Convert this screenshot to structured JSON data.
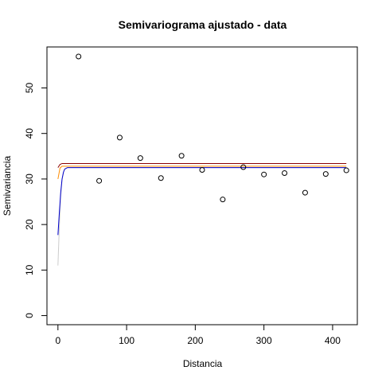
{
  "chart_data": {
    "type": "scatter",
    "title": "Semivariograma ajustado - data",
    "xlabel": "Distancia",
    "ylabel": "Semivariancia",
    "xlim": [
      -16,
      436
    ],
    "ylim": [
      -2,
      59
    ],
    "x_ticks": [
      0,
      100,
      200,
      300,
      400
    ],
    "y_ticks": [
      0,
      10,
      20,
      30,
      40,
      50
    ],
    "grid": false,
    "points": [
      {
        "x": 30,
        "y": 56.9
      },
      {
        "x": 60,
        "y": 29.6
      },
      {
        "x": 90,
        "y": 39.1
      },
      {
        "x": 120,
        "y": 34.6
      },
      {
        "x": 150,
        "y": 30.2
      },
      {
        "x": 180,
        "y": 35.1
      },
      {
        "x": 210,
        "y": 32.0
      },
      {
        "x": 240,
        "y": 25.5
      },
      {
        "x": 270,
        "y": 32.6
      },
      {
        "x": 300,
        "y": 31.0
      },
      {
        "x": 330,
        "y": 31.3
      },
      {
        "x": 360,
        "y": 27.0
      },
      {
        "x": 390,
        "y": 31.1
      },
      {
        "x": 420,
        "y": 31.9
      }
    ],
    "series": [
      {
        "color": "#cccccc",
        "values": [
          [
            0,
            11.0
          ],
          [
            2,
            19.5
          ],
          [
            4,
            26.0
          ],
          [
            6,
            29.8
          ],
          [
            9,
            32.0
          ],
          [
            13,
            32.5
          ],
          [
            420,
            32.5
          ]
        ]
      },
      {
        "color": "#ff8c00",
        "values": [
          [
            0,
            30.0
          ],
          [
            3,
            32.4
          ],
          [
            6,
            32.8
          ],
          [
            420,
            32.8
          ]
        ]
      },
      {
        "color": "#0000cd",
        "values": [
          [
            0,
            17.7
          ],
          [
            2,
            22.5
          ],
          [
            4,
            27.0
          ],
          [
            6,
            30.0
          ],
          [
            8,
            31.5
          ],
          [
            10,
            32.2
          ],
          [
            14,
            32.5
          ],
          [
            420,
            32.5
          ]
        ]
      },
      {
        "color": "#8b0000",
        "values": [
          [
            0,
            32.5
          ],
          [
            3,
            33.2
          ],
          [
            6,
            33.4
          ],
          [
            420,
            33.4
          ]
        ]
      }
    ]
  }
}
